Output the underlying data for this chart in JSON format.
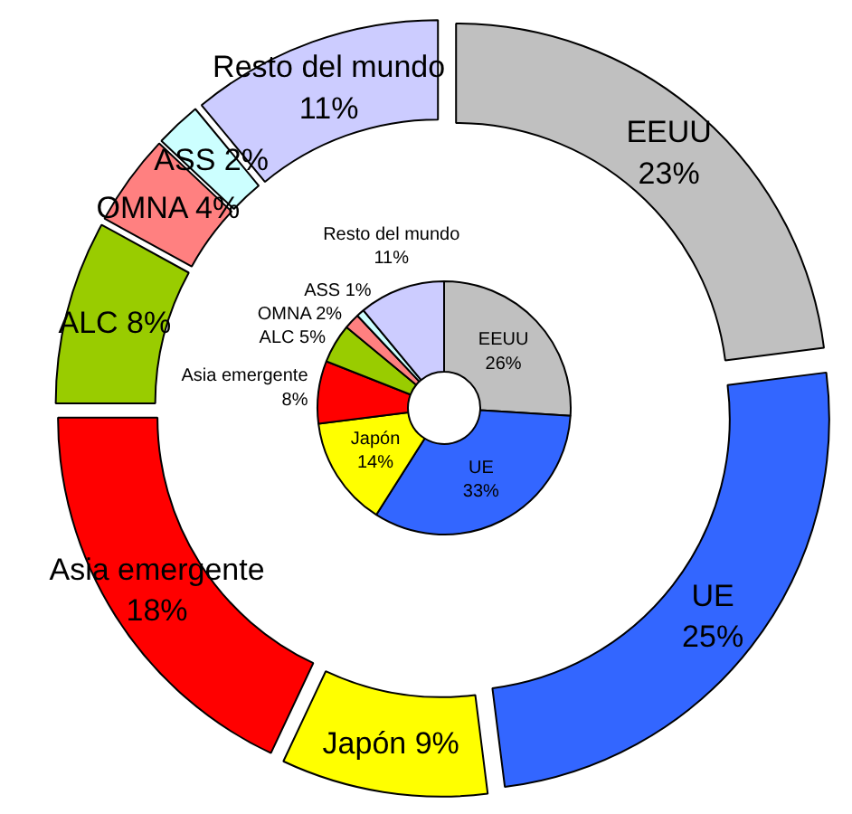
{
  "chart_data": {
    "type": "donut",
    "categories": [
      "EEUU",
      "UE",
      "Japón",
      "Asia emergente",
      "ALC",
      "OMNA",
      "ASS",
      "Resto del mundo"
    ],
    "colors": [
      "#c0c0c0",
      "#3366ff",
      "#ffff00",
      "#ff0000",
      "#99cc00",
      "#ff8080",
      "#ccffff",
      "#ccccff"
    ],
    "series": [
      {
        "values": [
          26,
          33,
          14,
          8,
          5,
          2,
          1,
          11
        ],
        "value_labels": [
          "26%",
          "33%",
          "14%",
          "8%",
          "5%",
          "2%",
          "1%",
          "11%"
        ]
      },
      {
        "values": [
          23,
          25,
          9,
          18,
          8,
          4,
          2,
          11
        ],
        "value_labels": [
          "23%",
          "25%",
          "9%",
          "18%",
          "8%",
          "4%",
          "2%",
          "11%"
        ]
      }
    ]
  }
}
